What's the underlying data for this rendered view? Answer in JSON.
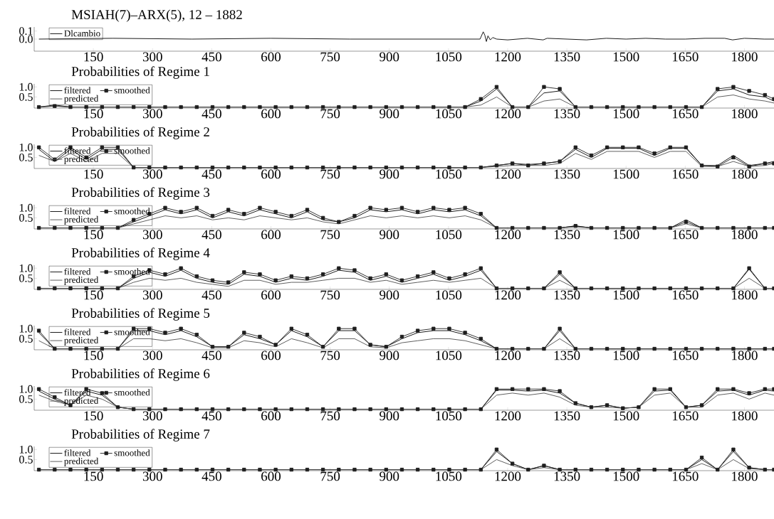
{
  "chart_data": [
    {
      "type": "line",
      "title": "MSIAH(7)–ARX(5), 12 – 1882",
      "xlim": [
        0,
        1875
      ],
      "ylim": [
        -0.15,
        0.15
      ],
      "legend": "top left",
      "xticks": [
        150,
        300,
        450,
        600,
        750,
        900,
        1050,
        1200,
        1350,
        1500,
        1650,
        1800
      ],
      "yticks": [
        {
          "value": 0,
          "label": "0.0"
        },
        {
          "value": 0.1,
          "label": "0.1"
        }
      ],
      "x": [
        12,
        200,
        400,
        600,
        800,
        1000,
        1130,
        1138,
        1142,
        1146,
        1150,
        1156,
        1162,
        1172,
        1200,
        1250,
        1290,
        1300,
        1350,
        1400,
        1450,
        1500,
        1550,
        1600,
        1650,
        1700,
        1750,
        1770,
        1800,
        1850,
        1875
      ],
      "series": [
        {
          "name": "Dlcambio",
          "color": "#000000",
          "values": [
            0,
            0.01,
            0,
            0.01,
            0,
            0,
            0,
            0.09,
            0.05,
            -0.03,
            0.04,
            -0.01,
            0.02,
            0,
            -0.01,
            0.01,
            -0.01,
            0.01,
            0,
            -0.01,
            0.01,
            0,
            0.01,
            0,
            0,
            0.01,
            0.01,
            -0.01,
            0.01,
            0,
            0
          ]
        }
      ]
    },
    {
      "type": "line",
      "title": "Probabilities of Regime 1",
      "xlim": [
        0,
        1875
      ],
      "ylim": [
        -0.05,
        1.15
      ],
      "legend": "top left",
      "xticks": [
        150,
        300,
        450,
        600,
        750,
        900,
        1050,
        1200,
        1350,
        1500,
        1650,
        1800
      ],
      "yticks": [
        {
          "value": 0.5,
          "label": "0.5"
        },
        {
          "value": 1,
          "label": "1.0"
        }
      ],
      "x": [
        12,
        52,
        92,
        132,
        172,
        212,
        252,
        292,
        332,
        372,
        412,
        452,
        492,
        532,
        572,
        612,
        652,
        692,
        732,
        772,
        812,
        852,
        892,
        932,
        972,
        1012,
        1052,
        1092,
        1132,
        1172,
        1212,
        1252,
        1292,
        1332,
        1372,
        1412,
        1452,
        1492,
        1532,
        1572,
        1612,
        1652,
        1692,
        1732,
        1772,
        1812,
        1852,
        1875
      ],
      "series": [
        {
          "name": "filtered",
          "color": "#000000",
          "values": [
            0,
            0.1,
            0,
            0,
            0,
            0,
            0,
            0,
            0,
            0,
            0,
            0,
            0,
            0,
            0,
            0,
            0,
            0,
            0,
            0,
            0,
            0,
            0,
            0,
            0,
            0,
            0,
            0,
            0.3,
            0.9,
            0,
            0,
            0.7,
            0.8,
            0,
            0,
            0,
            0,
            0,
            0,
            0,
            0,
            0,
            0.8,
            0.9,
            0.6,
            0.5,
            0.3
          ]
        },
        {
          "name": "smoothed",
          "color": "#1e1e1e",
          "marker": "square",
          "values": [
            0,
            0.05,
            0,
            0,
            0,
            0,
            0,
            0,
            0,
            0,
            0,
            0,
            0,
            0,
            0,
            0,
            0,
            0,
            0,
            0,
            0,
            0,
            0,
            0,
            0,
            0,
            0,
            0,
            0.4,
            1.0,
            0,
            0,
            1.0,
            0.9,
            0,
            0,
            0,
            0,
            0,
            0,
            0,
            0,
            0,
            0.9,
            1.0,
            0.8,
            0.6,
            0.4
          ]
        },
        {
          "name": "predicted",
          "color": "#4d4d4d",
          "values": [
            0,
            0.05,
            0,
            0,
            0,
            0,
            0,
            0,
            0,
            0,
            0,
            0,
            0,
            0,
            0,
            0,
            0,
            0,
            0,
            0,
            0,
            0,
            0,
            0,
            0,
            0,
            0,
            0,
            0.1,
            0.5,
            0,
            0,
            0.3,
            0.4,
            0,
            0,
            0,
            0,
            0,
            0,
            0,
            0,
            0,
            0.5,
            0.6,
            0.4,
            0.3,
            0.2
          ]
        }
      ]
    },
    {
      "type": "line",
      "title": "Probabilities of Regime 2",
      "xlim": [
        0,
        1875
      ],
      "ylim": [
        -0.05,
        1.15
      ],
      "legend": "top left",
      "xticks": [
        150,
        300,
        450,
        600,
        750,
        900,
        1050,
        1200,
        1350,
        1500,
        1650,
        1800
      ],
      "yticks": [
        {
          "value": 0.5,
          "label": "0.5"
        },
        {
          "value": 1,
          "label": "1.0"
        }
      ],
      "x": [
        12,
        52,
        92,
        132,
        172,
        212,
        252,
        292,
        332,
        372,
        412,
        452,
        492,
        532,
        572,
        612,
        652,
        692,
        732,
        772,
        812,
        852,
        892,
        932,
        972,
        1012,
        1052,
        1092,
        1132,
        1172,
        1212,
        1252,
        1292,
        1332,
        1372,
        1412,
        1452,
        1492,
        1532,
        1572,
        1612,
        1652,
        1692,
        1732,
        1772,
        1812,
        1852,
        1875
      ],
      "series": [
        {
          "name": "filtered",
          "color": "#000000",
          "values": [
            0.9,
            0.3,
            0.9,
            0.4,
            0.9,
            0.9,
            0,
            0,
            0,
            0,
            0,
            0,
            0,
            0,
            0,
            0,
            0,
            0,
            0,
            0,
            0,
            0,
            0,
            0,
            0,
            0,
            0,
            0,
            0,
            0.1,
            0.2,
            0.15,
            0.2,
            0.3,
            0.9,
            0.5,
            0.95,
            0.95,
            0.95,
            0.6,
            0.95,
            0.95,
            0.1,
            0.1,
            0.6,
            0.1,
            0.2,
            0.3
          ]
        },
        {
          "name": "smoothed",
          "color": "#1e1e1e",
          "marker": "square",
          "values": [
            1.0,
            0.4,
            1.0,
            0.5,
            1.0,
            1.0,
            0,
            0,
            0,
            0,
            0,
            0,
            0,
            0,
            0,
            0,
            0,
            0,
            0,
            0,
            0,
            0,
            0,
            0,
            0,
            0,
            0,
            0,
            0,
            0.1,
            0.2,
            0.1,
            0.2,
            0.3,
            1.0,
            0.6,
            1.0,
            1.0,
            1.0,
            0.7,
            1.0,
            1.0,
            0.1,
            0.05,
            0.5,
            0.05,
            0.2,
            0.2
          ]
        },
        {
          "name": "predicted",
          "color": "#4d4d4d",
          "values": [
            0.6,
            0.3,
            0.7,
            0.3,
            0.7,
            0.7,
            0,
            0,
            0,
            0,
            0,
            0,
            0,
            0,
            0,
            0,
            0,
            0,
            0,
            0,
            0,
            0,
            0,
            0,
            0,
            0,
            0,
            0,
            0,
            0.05,
            0.1,
            0.1,
            0.1,
            0.2,
            0.7,
            0.4,
            0.8,
            0.8,
            0.8,
            0.5,
            0.8,
            0.8,
            0.05,
            0.05,
            0.3,
            0.05,
            0.1,
            0.2
          ]
        }
      ]
    },
    {
      "type": "line",
      "title": "Probabilities of Regime 3",
      "xlim": [
        0,
        1875
      ],
      "ylim": [
        -0.05,
        1.15
      ],
      "legend": "top left",
      "xticks": [
        150,
        300,
        450,
        600,
        750,
        900,
        1050,
        1200,
        1350,
        1500,
        1650,
        1800
      ],
      "yticks": [
        {
          "value": 0.5,
          "label": "0.5"
        },
        {
          "value": 1,
          "label": "1.0"
        }
      ],
      "x": [
        12,
        52,
        92,
        132,
        172,
        212,
        252,
        292,
        332,
        372,
        412,
        452,
        492,
        532,
        572,
        612,
        652,
        692,
        732,
        772,
        812,
        852,
        892,
        932,
        972,
        1012,
        1052,
        1092,
        1132,
        1172,
        1212,
        1252,
        1292,
        1332,
        1372,
        1412,
        1452,
        1492,
        1532,
        1572,
        1612,
        1652,
        1692,
        1732,
        1772,
        1812,
        1852,
        1875
      ],
      "series": [
        {
          "name": "filtered",
          "color": "#000000",
          "values": [
            0,
            0,
            0,
            0,
            0,
            0,
            0.3,
            0.6,
            0.9,
            0.7,
            0.9,
            0.5,
            0.8,
            0.6,
            0.9,
            0.7,
            0.5,
            0.8,
            0.4,
            0.3,
            0.5,
            0.9,
            0.8,
            0.9,
            0.7,
            0.9,
            0.8,
            0.9,
            0.6,
            0,
            0,
            0,
            0,
            0,
            0.1,
            0,
            0,
            0,
            0,
            0,
            0,
            0.4,
            0,
            0,
            0,
            0,
            0,
            0
          ]
        },
        {
          "name": "smoothed",
          "color": "#1e1e1e",
          "marker": "square",
          "values": [
            0,
            0,
            0,
            0,
            0,
            0,
            0.4,
            0.7,
            1.0,
            0.8,
            1.0,
            0.6,
            0.9,
            0.7,
            1.0,
            0.8,
            0.6,
            0.9,
            0.5,
            0.3,
            0.6,
            1.0,
            0.9,
            1.0,
            0.8,
            1.0,
            0.9,
            1.0,
            0.7,
            0,
            0,
            0,
            0,
            0,
            0.1,
            0,
            0,
            0,
            0,
            0,
            0,
            0.3,
            0,
            0,
            0,
            0,
            0,
            0
          ]
        },
        {
          "name": "predicted",
          "color": "#4d4d4d",
          "values": [
            0,
            0,
            0,
            0,
            0,
            0,
            0.2,
            0.4,
            0.6,
            0.5,
            0.6,
            0.4,
            0.5,
            0.4,
            0.6,
            0.5,
            0.4,
            0.5,
            0.3,
            0.2,
            0.4,
            0.6,
            0.5,
            0.6,
            0.5,
            0.6,
            0.5,
            0.6,
            0.4,
            0,
            0,
            0,
            0,
            0,
            0.05,
            0,
            0,
            0,
            0,
            0,
            0,
            0.2,
            0,
            0,
            0,
            0,
            0,
            0
          ]
        }
      ]
    },
    {
      "type": "line",
      "title": "Probabilities of Regime 4",
      "xlim": [
        0,
        1875
      ],
      "ylim": [
        -0.05,
        1.15
      ],
      "legend": "top left",
      "xticks": [
        150,
        300,
        450,
        600,
        750,
        900,
        1050,
        1200,
        1350,
        1500,
        1650,
        1800
      ],
      "yticks": [
        {
          "value": 0.5,
          "label": "0.5"
        },
        {
          "value": 1,
          "label": "1.0"
        }
      ],
      "x": [
        12,
        52,
        92,
        132,
        172,
        212,
        252,
        292,
        332,
        372,
        412,
        452,
        492,
        532,
        572,
        612,
        652,
        692,
        732,
        772,
        812,
        852,
        892,
        932,
        972,
        1012,
        1052,
        1092,
        1132,
        1172,
        1212,
        1252,
        1292,
        1332,
        1372,
        1412,
        1452,
        1492,
        1532,
        1572,
        1612,
        1652,
        1692,
        1732,
        1772,
        1812,
        1852,
        1875
      ],
      "series": [
        {
          "name": "filtered",
          "color": "#000000",
          "values": [
            0,
            0,
            0,
            0,
            0,
            0,
            0.5,
            0.8,
            0.6,
            0.9,
            0.5,
            0.3,
            0.2,
            0.7,
            0.6,
            0.3,
            0.5,
            0.4,
            0.6,
            0.9,
            0.8,
            0.4,
            0.6,
            0.3,
            0.5,
            0.7,
            0.4,
            0.6,
            0.9,
            0,
            0,
            0,
            0,
            0.7,
            0,
            0,
            0,
            0,
            0,
            0,
            0,
            0,
            0,
            0,
            0,
            0.95,
            0,
            0
          ]
        },
        {
          "name": "smoothed",
          "color": "#1e1e1e",
          "marker": "square",
          "values": [
            0,
            0,
            0,
            0,
            0,
            0,
            0.6,
            0.9,
            0.7,
            1.0,
            0.6,
            0.4,
            0.3,
            0.8,
            0.7,
            0.4,
            0.6,
            0.5,
            0.7,
            1.0,
            0.9,
            0.5,
            0.7,
            0.4,
            0.6,
            0.8,
            0.5,
            0.7,
            1.0,
            0,
            0,
            0,
            0,
            0.8,
            0,
            0,
            0,
            0,
            0,
            0,
            0,
            0,
            0,
            0,
            0,
            1.0,
            0,
            0
          ]
        },
        {
          "name": "predicted",
          "color": "#4d4d4d",
          "values": [
            0,
            0,
            0,
            0,
            0,
            0,
            0.3,
            0.5,
            0.4,
            0.5,
            0.3,
            0.2,
            0.1,
            0.4,
            0.4,
            0.2,
            0.3,
            0.3,
            0.4,
            0.5,
            0.5,
            0.3,
            0.4,
            0.2,
            0.3,
            0.4,
            0.3,
            0.4,
            0.5,
            0,
            0,
            0,
            0,
            0.4,
            0,
            0,
            0,
            0,
            0,
            0,
            0,
            0,
            0,
            0,
            0,
            0.5,
            0,
            0
          ]
        }
      ]
    },
    {
      "type": "line",
      "title": "Probabilities of Regime 5",
      "xlim": [
        0,
        1875
      ],
      "ylim": [
        -0.05,
        1.15
      ],
      "legend": "top left",
      "xticks": [
        150,
        300,
        450,
        600,
        750,
        900,
        1050,
        1200,
        1350,
        1500,
        1650,
        1800
      ],
      "yticks": [
        {
          "value": 0.5,
          "label": "0.5"
        },
        {
          "value": 1,
          "label": "1.0"
        }
      ],
      "x": [
        12,
        52,
        92,
        132,
        172,
        212,
        252,
        292,
        332,
        372,
        412,
        452,
        492,
        532,
        572,
        612,
        652,
        692,
        732,
        772,
        812,
        852,
        892,
        932,
        972,
        1012,
        1052,
        1092,
        1132,
        1172,
        1212,
        1252,
        1292,
        1332,
        1372,
        1412,
        1452,
        1492,
        1532,
        1572,
        1612,
        1652,
        1692,
        1732,
        1772,
        1812,
        1852,
        1875
      ],
      "series": [
        {
          "name": "filtered",
          "color": "#000000",
          "values": [
            0.8,
            0,
            0,
            0,
            0,
            0,
            0.9,
            0.9,
            0.7,
            0.9,
            0.6,
            0.1,
            0.1,
            0.7,
            0.5,
            0.2,
            0.9,
            0.6,
            0.1,
            0.9,
            0.9,
            0.2,
            0.1,
            0.5,
            0.8,
            0.9,
            0.9,
            0.7,
            0.4,
            0,
            0,
            0,
            0,
            0.9,
            0,
            0,
            0,
            0,
            0,
            0,
            0,
            0,
            0,
            0,
            0,
            0,
            0,
            0
          ]
        },
        {
          "name": "smoothed",
          "color": "#1e1e1e",
          "marker": "square",
          "values": [
            0.9,
            0,
            0,
            0,
            0,
            0,
            1.0,
            1.0,
            0.8,
            1.0,
            0.7,
            0.1,
            0.1,
            0.8,
            0.6,
            0.2,
            1.0,
            0.7,
            0.1,
            1.0,
            1.0,
            0.2,
            0.1,
            0.6,
            0.9,
            1.0,
            1.0,
            0.8,
            0.5,
            0,
            0,
            0,
            0,
            1.0,
            0,
            0,
            0,
            0,
            0,
            0,
            0,
            0,
            0,
            0,
            0,
            0,
            0,
            0
          ]
        },
        {
          "name": "predicted",
          "color": "#4d4d4d",
          "values": [
            0.4,
            0,
            0,
            0,
            0,
            0,
            0.5,
            0.5,
            0.4,
            0.5,
            0.3,
            0.05,
            0.05,
            0.4,
            0.3,
            0.1,
            0.5,
            0.3,
            0.05,
            0.5,
            0.5,
            0.1,
            0.05,
            0.3,
            0.4,
            0.5,
            0.5,
            0.4,
            0.2,
            0,
            0,
            0,
            0,
            0.5,
            0,
            0,
            0,
            0,
            0,
            0,
            0,
            0,
            0,
            0,
            0,
            0,
            0,
            0
          ]
        }
      ]
    },
    {
      "type": "line",
      "title": "Probabilities of Regime 6",
      "xlim": [
        0,
        1875
      ],
      "ylim": [
        -0.05,
        1.15
      ],
      "legend": "top left",
      "xticks": [
        150,
        300,
        450,
        600,
        750,
        900,
        1050,
        1200,
        1350,
        1500,
        1650,
        1800
      ],
      "yticks": [
        {
          "value": 0.5,
          "label": "0.5"
        },
        {
          "value": 1,
          "label": "1.0"
        }
      ],
      "x": [
        12,
        52,
        92,
        132,
        172,
        212,
        252,
        292,
        332,
        372,
        412,
        452,
        492,
        532,
        572,
        612,
        652,
        692,
        732,
        772,
        812,
        852,
        892,
        932,
        972,
        1012,
        1052,
        1092,
        1132,
        1172,
        1212,
        1252,
        1292,
        1332,
        1372,
        1412,
        1452,
        1492,
        1532,
        1572,
        1612,
        1652,
        1692,
        1732,
        1772,
        1812,
        1852,
        1875
      ],
      "series": [
        {
          "name": "filtered",
          "color": "#000000",
          "values": [
            0.9,
            0.5,
            0.2,
            0.9,
            0.7,
            0.1,
            0,
            0,
            0,
            0,
            0,
            0,
            0,
            0,
            0,
            0,
            0,
            0,
            0,
            0,
            0,
            0,
            0,
            0,
            0,
            0,
            0,
            0,
            0,
            0.95,
            0.95,
            0.9,
            0.95,
            0.8,
            0.3,
            0.1,
            0.2,
            0.05,
            0.1,
            0.9,
            0.95,
            0.1,
            0.2,
            0.9,
            0.95,
            0.7,
            0.95,
            0.9
          ]
        },
        {
          "name": "smoothed",
          "color": "#1e1e1e",
          "marker": "square",
          "values": [
            1.0,
            0.6,
            0.2,
            1.0,
            0.8,
            0.1,
            0,
            0,
            0,
            0,
            0,
            0,
            0,
            0,
            0,
            0,
            0,
            0,
            0,
            0,
            0,
            0,
            0,
            0,
            0,
            0,
            0,
            0,
            0,
            1.0,
            1.0,
            1.0,
            1.0,
            0.9,
            0.3,
            0.1,
            0.2,
            0.05,
            0.1,
            1.0,
            1.0,
            0.1,
            0.2,
            1.0,
            1.0,
            0.8,
            1.0,
            1.0
          ]
        },
        {
          "name": "predicted",
          "color": "#4d4d4d",
          "values": [
            0.7,
            0.4,
            0.2,
            0.7,
            0.5,
            0.1,
            0,
            0,
            0,
            0,
            0,
            0,
            0,
            0,
            0,
            0,
            0,
            0,
            0,
            0,
            0,
            0,
            0,
            0,
            0,
            0,
            0,
            0,
            0,
            0.7,
            0.8,
            0.7,
            0.8,
            0.6,
            0.2,
            0.1,
            0.1,
            0.05,
            0.1,
            0.7,
            0.8,
            0.1,
            0.1,
            0.7,
            0.8,
            0.5,
            0.8,
            0.7
          ]
        }
      ]
    },
    {
      "type": "line",
      "title": "Probabilities of Regime 7",
      "xlim": [
        0,
        1875
      ],
      "ylim": [
        -0.05,
        1.15
      ],
      "legend": "top left",
      "xticks": [
        150,
        300,
        450,
        600,
        750,
        900,
        1050,
        1200,
        1350,
        1500,
        1650,
        1800
      ],
      "yticks": [
        {
          "value": 0.5,
          "label": "0.5"
        },
        {
          "value": 1,
          "label": "1.0"
        }
      ],
      "x": [
        12,
        52,
        92,
        132,
        172,
        212,
        252,
        292,
        332,
        372,
        412,
        452,
        492,
        532,
        572,
        612,
        652,
        692,
        732,
        772,
        812,
        852,
        892,
        932,
        972,
        1012,
        1052,
        1092,
        1132,
        1172,
        1212,
        1252,
        1292,
        1332,
        1372,
        1412,
        1452,
        1492,
        1532,
        1572,
        1612,
        1652,
        1692,
        1732,
        1772,
        1812,
        1852,
        1875
      ],
      "series": [
        {
          "name": "filtered",
          "color": "#000000",
          "values": [
            0,
            0,
            0,
            0,
            0,
            0,
            0,
            0,
            0,
            0,
            0,
            0,
            0,
            0,
            0,
            0,
            0,
            0,
            0,
            0,
            0,
            0,
            0,
            0,
            0,
            0,
            0,
            0,
            0,
            0.9,
            0.3,
            0,
            0.2,
            0,
            0,
            0,
            0,
            0,
            0,
            0,
            0,
            0,
            0.5,
            0,
            0.9,
            0.1,
            0,
            0
          ]
        },
        {
          "name": "smoothed",
          "color": "#1e1e1e",
          "marker": "square",
          "values": [
            0,
            0,
            0,
            0,
            0,
            0,
            0,
            0,
            0,
            0,
            0,
            0,
            0,
            0,
            0,
            0,
            0,
            0,
            0,
            0,
            0,
            0,
            0,
            0,
            0,
            0,
            0,
            0,
            0,
            1.0,
            0.3,
            0,
            0.2,
            0,
            0,
            0,
            0,
            0,
            0,
            0,
            0,
            0,
            0.6,
            0,
            1.0,
            0.1,
            0,
            0
          ]
        },
        {
          "name": "predicted",
          "color": "#4d4d4d",
          "values": [
            0,
            0,
            0,
            0,
            0,
            0,
            0,
            0,
            0,
            0,
            0,
            0,
            0,
            0,
            0,
            0,
            0,
            0,
            0,
            0,
            0,
            0,
            0,
            0,
            0,
            0,
            0,
            0,
            0,
            0.5,
            0.2,
            0,
            0.1,
            0,
            0,
            0,
            0,
            0,
            0,
            0,
            0,
            0,
            0.3,
            0,
            0.5,
            0.05,
            0,
            0
          ]
        }
      ]
    }
  ]
}
